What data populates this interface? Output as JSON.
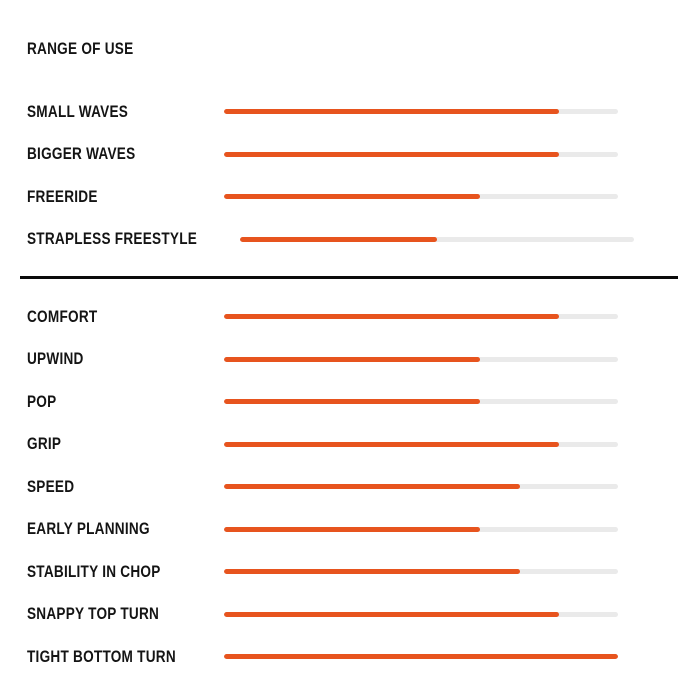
{
  "page_title": "RANGE OF USE",
  "accent_color": "#e7541e",
  "track_color": "#eaeaea",
  "divider_color": "#0a0a0a",
  "chart_data": {
    "type": "bar",
    "orientation": "horizontal",
    "title": "RANGE OF USE",
    "value_unit": "percent_of_scale",
    "value_range": [
      0,
      100
    ],
    "grid": false,
    "legend": false,
    "sections": [
      {
        "name": "range-of-use",
        "rows": [
          {
            "label": "SMALL WAVES",
            "value": 85
          },
          {
            "label": "BIGGER WAVES",
            "value": 85
          },
          {
            "label": "FREERIDE",
            "value": 65
          },
          {
            "label": "STRAPLESS FREESTYLE",
            "value": 50
          }
        ]
      },
      {
        "name": "characteristics",
        "rows": [
          {
            "label": "COMFORT",
            "value": 85
          },
          {
            "label": "UPWIND",
            "value": 65
          },
          {
            "label": "POP",
            "value": 65
          },
          {
            "label": "GRIP",
            "value": 85
          },
          {
            "label": "SPEED",
            "value": 75
          },
          {
            "label": "EARLY PLANNING",
            "value": 65
          },
          {
            "label": "STABILITY IN CHOP",
            "value": 75
          },
          {
            "label": "SNAPPY TOP TURN",
            "value": 85
          },
          {
            "label": "TIGHT BOTTOM TURN",
            "value": 100
          }
        ]
      }
    ]
  }
}
